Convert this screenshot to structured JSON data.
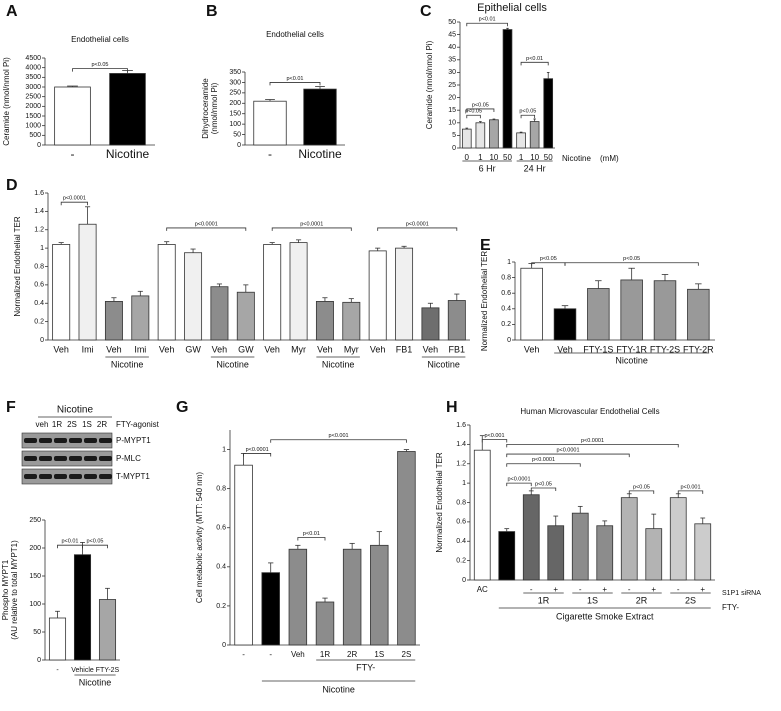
{
  "chart_data": [
    {
      "type": "bar",
      "panel": "A",
      "title": "Endothelial cells",
      "ylabel": [
        "Ceramide (nmol/nmol Pi)"
      ],
      "categories": [
        "-",
        "Nicotine"
      ],
      "values": [
        3000,
        3700
      ],
      "errors": [
        50,
        150
      ],
      "colors": [
        "#ffffff",
        "#000000"
      ],
      "ylim": [
        0,
        4500
      ],
      "yticks": [
        0,
        500,
        1000,
        1500,
        2000,
        2500,
        3000,
        3500,
        4000,
        4500
      ],
      "annotations": [
        "p<0.05"
      ]
    },
    {
      "type": "bar",
      "panel": "B",
      "title": "Endothelial cells",
      "ylabel": [
        "Dihydroceramide",
        "(nmol/nmol Pi)"
      ],
      "categories": [
        "-",
        "Nicotine"
      ],
      "values": [
        210,
        268
      ],
      "errors": [
        8,
        12
      ],
      "colors": [
        "#ffffff",
        "#000000"
      ],
      "ylim": [
        0,
        350
      ],
      "yticks": [
        0,
        50,
        100,
        150,
        200,
        250,
        300,
        350
      ],
      "annotations": [
        "p<0.01"
      ]
    },
    {
      "type": "bar",
      "panel": "C",
      "title": "Epithelial cells",
      "ylabel": [
        "Ceramide (nmol/nmol Pi)"
      ],
      "categories": [
        "0",
        "1",
        "10",
        "50",
        "1",
        "10",
        "50"
      ],
      "values": [
        7.5,
        10,
        11.2,
        47,
        6,
        10.5,
        27.5
      ],
      "errors": [
        0.4,
        0.5,
        0.3,
        0.5,
        0.3,
        1,
        2.5
      ],
      "colors": [
        "#e6e6e6",
        "#e6e6e6",
        "#a6a6a6",
        "#000000",
        "#e6e6e6",
        "#a6a6a6",
        "#000000"
      ],
      "ylim": [
        0,
        50
      ],
      "yticks": [
        0,
        5,
        10,
        15,
        20,
        25,
        30,
        35,
        40,
        45,
        50
      ],
      "annotations": [
        "p<0.01",
        "p<0.05",
        "p<0.05",
        "p<0.05",
        "p<0.01"
      ],
      "groups": [
        "6 Hr",
        "24 Hr"
      ],
      "xlabel": "Nicotine",
      "unit": "(mM)"
    },
    {
      "type": "bar",
      "panel": "D",
      "ylabel": [
        "Normalized Endothelial TER"
      ],
      "categories": [
        "Veh",
        "Imi",
        "Veh",
        "Imi",
        "Veh",
        "GW",
        "Veh",
        "GW",
        "Veh",
        "Myr",
        "Veh",
        "Myr",
        "Veh",
        "FB1",
        "Veh",
        "FB1"
      ],
      "values": [
        1.04,
        1.26,
        0.42,
        0.48,
        1.04,
        0.95,
        0.58,
        0.52,
        1.04,
        1.06,
        0.42,
        0.41,
        0.97,
        1.0,
        0.35,
        0.43
      ],
      "errors": [
        0.02,
        0.19,
        0.04,
        0.05,
        0.03,
        0.04,
        0.03,
        0.08,
        0.02,
        0.03,
        0.04,
        0.04,
        0.03,
        0.02,
        0.05,
        0.07
      ],
      "colors": [
        "#ffffff",
        "#f0f0f0",
        "#8c8c8c",
        "#a6a6a6",
        "#ffffff",
        "#f0f0f0",
        "#8c8c8c",
        "#a6a6a6",
        "#ffffff",
        "#f0f0f0",
        "#8c8c8c",
        "#a6a6a6",
        "#ffffff",
        "#f0f0f0",
        "#6e6e6e",
        "#8c8c8c"
      ],
      "ylim": [
        0,
        1.6
      ],
      "yticks": [
        0,
        0.2,
        0.4,
        0.6,
        0.8,
        1,
        1.2,
        1.4,
        1.6
      ],
      "annotations": [
        "p<0.0001",
        "p<0.0001",
        "p<0.0001",
        "p<0.0001"
      ],
      "groups": [
        "Nicotine",
        "Nicotine",
        "Nicotine",
        "Nicotine"
      ]
    },
    {
      "type": "bar",
      "panel": "E",
      "ylabel": [
        "Normalized Endothelial TER"
      ],
      "categories": [
        "Veh",
        "Veh",
        "FTY-1S",
        "FTY-1R",
        "FTY-2S",
        "FTY-2R"
      ],
      "values": [
        0.92,
        0.4,
        0.66,
        0.77,
        0.76,
        0.65
      ],
      "errors": [
        0.06,
        0.04,
        0.1,
        0.15,
        0.08,
        0.07
      ],
      "colors": [
        "#ffffff",
        "#000000",
        "#999999",
        "#999999",
        "#999999",
        "#999999"
      ],
      "ylim": [
        0,
        1
      ],
      "yticks": [
        0,
        0.2,
        0.4,
        0.6,
        0.8,
        1
      ],
      "annotations": [
        "p<0.05",
        "p<0.05"
      ],
      "groups": [
        "Nicotine"
      ]
    },
    {
      "type": "bar",
      "panel": "F",
      "ylabel": [
        "Phospho MYPT1",
        "(AU relative to total MYPT1)"
      ],
      "categories": [
        "-",
        "Vehicle",
        "FTY-2S"
      ],
      "values": [
        75,
        188,
        108
      ],
      "errors": [
        12,
        22,
        20
      ],
      "colors": [
        "#ffffff",
        "#000000",
        "#a6a6a6"
      ],
      "ylim": [
        0,
        250
      ],
      "yticks": [
        0,
        50,
        100,
        150,
        200,
        250
      ],
      "annotations": [
        "p<0.01",
        "p<0.05"
      ],
      "groups": [
        "Nicotine"
      ],
      "blot": {
        "group": "Nicotine",
        "lanes": [
          "veh",
          "1R",
          "2S",
          "1S",
          "2R"
        ],
        "agonist": "FTY-agonist",
        "rows": [
          "P-MYPT1",
          "P-MLC",
          "T-MYPT1"
        ]
      }
    },
    {
      "type": "bar",
      "panel": "G",
      "ylabel": [
        "Cell metabolic activity (MTT: 540 nm)"
      ],
      "categories": [
        "-",
        "-",
        "Veh",
        "1R",
        "2R",
        "1S",
        "2S"
      ],
      "values": [
        0.92,
        0.37,
        0.49,
        0.22,
        0.49,
        0.51,
        0.99
      ],
      "errors": [
        0.06,
        0.05,
        0.02,
        0.02,
        0.03,
        0.07,
        0.01
      ],
      "colors": [
        "#ffffff",
        "#000000",
        "#8c8c8c",
        "#8c8c8c",
        "#8c8c8c",
        "#8c8c8c",
        "#8c8c8c"
      ],
      "ylim": [
        0,
        1.1
      ],
      "yticks": [
        0,
        0.2,
        0.4,
        0.6,
        0.8,
        1
      ],
      "annotations": [
        "p<0.0001",
        "p<0.01",
        "p<0.001"
      ],
      "groups": [
        "FTY-"
      ],
      "group_label": "Nicotine"
    },
    {
      "type": "bar",
      "panel": "H",
      "title": "Human Microvascular Endothelial Cells",
      "ylabel": [
        "Normalized Endothelial TER"
      ],
      "categories": [
        "AC",
        null,
        "-",
        "+",
        "-",
        "+",
        "-",
        "+",
        "-",
        "+"
      ],
      "values": [
        1.34,
        0.5,
        0.88,
        0.56,
        0.69,
        0.56,
        0.85,
        0.53,
        0.85,
        0.58
      ],
      "errors": [
        0.15,
        0.03,
        0.04,
        0.1,
        0.07,
        0.05,
        0.04,
        0.15,
        0.04,
        0.06
      ],
      "colors": [
        "#ffffff",
        "#000000",
        "#666666",
        "#666666",
        "#8c8c8c",
        "#8c8c8c",
        "#b3b3b3",
        "#b3b3b3",
        "#cccccc",
        "#cccccc"
      ],
      "ylim": [
        0,
        1.6
      ],
      "yticks": [
        0,
        0.2,
        0.4,
        0.6,
        0.8,
        1,
        1.2,
        1.4,
        1.6
      ],
      "annotations": [
        "p<0.001",
        "p<0.0001",
        "p<0.0001",
        "p<0.0001",
        "p<0.0001",
        "p<0.05",
        "p<0.05",
        "p<0.001"
      ],
      "groups": [
        "1R",
        "1S",
        "2R",
        "2S"
      ],
      "row_label": "S1P1 siRNA",
      "xlabel": "FTY-",
      "group_label": "Cigarette Smoke Extract"
    }
  ]
}
